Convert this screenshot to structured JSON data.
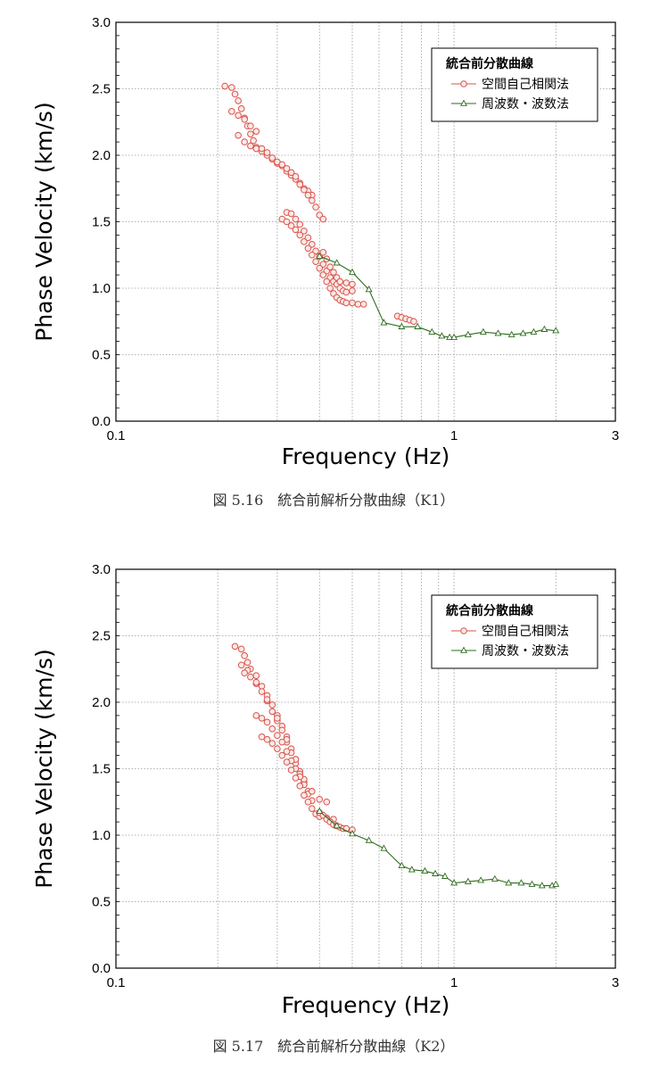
{
  "chart_data": [
    {
      "type": "scatter",
      "caption": "図 5.16　統合前解析分散曲線（K1）",
      "xlabel": "Frequency (Hz)",
      "ylabel": "Phase Velocity (km/s)",
      "xscale": "log",
      "xlim": [
        0.1,
        3
      ],
      "ylim": [
        0.0,
        3.0
      ],
      "xticks": [
        "0.1",
        "1",
        "3"
      ],
      "yticks": [
        "0.0",
        "0.5",
        "1.0",
        "1.5",
        "2.0",
        "2.5",
        "3.0"
      ],
      "grid": true,
      "legend": {
        "title": "統合前分散曲線",
        "position": "top-right"
      },
      "series": [
        {
          "name": "空間自己相関法",
          "marker": "circle",
          "color": "#d9534f",
          "points": [
            [
              0.21,
              2.52
            ],
            [
              0.22,
              2.51
            ],
            [
              0.225,
              2.46
            ],
            [
              0.23,
              2.41
            ],
            [
              0.235,
              2.35
            ],
            [
              0.24,
              2.28
            ],
            [
              0.245,
              2.22
            ],
            [
              0.25,
              2.16
            ],
            [
              0.255,
              2.11
            ],
            [
              0.26,
              2.06
            ],
            [
              0.27,
              2.03
            ],
            [
              0.28,
              2.0
            ],
            [
              0.29,
              1.97
            ],
            [
              0.3,
              1.94
            ],
            [
              0.31,
              1.92
            ],
            [
              0.32,
              1.88
            ],
            [
              0.33,
              1.85
            ],
            [
              0.34,
              1.82
            ],
            [
              0.35,
              1.79
            ],
            [
              0.36,
              1.75
            ],
            [
              0.37,
              1.73
            ],
            [
              0.38,
              1.7
            ],
            [
              0.22,
              2.33
            ],
            [
              0.23,
              2.3
            ],
            [
              0.24,
              2.27
            ],
            [
              0.25,
              2.22
            ],
            [
              0.26,
              2.18
            ],
            [
              0.23,
              2.15
            ],
            [
              0.24,
              2.1
            ],
            [
              0.25,
              2.07
            ],
            [
              0.26,
              2.05
            ],
            [
              0.27,
              2.05
            ],
            [
              0.28,
              2.02
            ],
            [
              0.29,
              1.98
            ],
            [
              0.3,
              1.95
            ],
            [
              0.31,
              1.93
            ],
            [
              0.32,
              1.9
            ],
            [
              0.33,
              1.87
            ],
            [
              0.34,
              1.84
            ],
            [
              0.35,
              1.78
            ],
            [
              0.36,
              1.74
            ],
            [
              0.37,
              1.7
            ],
            [
              0.38,
              1.66
            ],
            [
              0.39,
              1.61
            ],
            [
              0.4,
              1.55
            ],
            [
              0.41,
              1.52
            ],
            [
              0.32,
              1.57
            ],
            [
              0.33,
              1.56
            ],
            [
              0.34,
              1.52
            ],
            [
              0.35,
              1.48
            ],
            [
              0.36,
              1.43
            ],
            [
              0.37,
              1.38
            ],
            [
              0.38,
              1.33
            ],
            [
              0.39,
              1.28
            ],
            [
              0.4,
              1.24
            ],
            [
              0.41,
              1.18
            ],
            [
              0.42,
              1.13
            ],
            [
              0.43,
              1.08
            ],
            [
              0.44,
              1.05
            ],
            [
              0.45,
              1.03
            ],
            [
              0.46,
              1.0
            ],
            [
              0.47,
              0.98
            ],
            [
              0.48,
              0.97
            ],
            [
              0.5,
              0.98
            ],
            [
              0.31,
              1.52
            ],
            [
              0.32,
              1.5
            ],
            [
              0.33,
              1.47
            ],
            [
              0.34,
              1.44
            ],
            [
              0.35,
              1.4
            ],
            [
              0.36,
              1.35
            ],
            [
              0.37,
              1.3
            ],
            [
              0.38,
              1.25
            ],
            [
              0.39,
              1.2
            ],
            [
              0.4,
              1.15
            ],
            [
              0.41,
              1.1
            ],
            [
              0.42,
              1.05
            ],
            [
              0.43,
              1.0
            ],
            [
              0.44,
              0.96
            ],
            [
              0.45,
              0.93
            ],
            [
              0.46,
              0.91
            ],
            [
              0.47,
              0.9
            ],
            [
              0.48,
              0.89
            ],
            [
              0.5,
              0.89
            ],
            [
              0.52,
              0.88
            ],
            [
              0.54,
              0.88
            ],
            [
              0.41,
              1.27
            ],
            [
              0.42,
              1.22
            ],
            [
              0.43,
              1.16
            ],
            [
              0.44,
              1.12
            ],
            [
              0.45,
              1.08
            ],
            [
              0.46,
              1.05
            ],
            [
              0.48,
              1.04
            ],
            [
              0.5,
              1.03
            ],
            [
              0.68,
              0.79
            ],
            [
              0.7,
              0.78
            ],
            [
              0.72,
              0.77
            ],
            [
              0.74,
              0.76
            ],
            [
              0.76,
              0.75
            ]
          ]
        },
        {
          "name": "周波数・波数法",
          "marker": "triangle",
          "color": "#2e6b1e",
          "points": [
            [
              0.4,
              1.24
            ],
            [
              0.45,
              1.19
            ],
            [
              0.5,
              1.12
            ],
            [
              0.56,
              0.99
            ],
            [
              0.62,
              0.74
            ],
            [
              0.7,
              0.71
            ],
            [
              0.78,
              0.71
            ],
            [
              0.86,
              0.67
            ],
            [
              0.92,
              0.64
            ],
            [
              0.97,
              0.63
            ],
            [
              1.0,
              0.63
            ],
            [
              1.1,
              0.65
            ],
            [
              1.22,
              0.67
            ],
            [
              1.35,
              0.66
            ],
            [
              1.48,
              0.65
            ],
            [
              1.6,
              0.66
            ],
            [
              1.72,
              0.67
            ],
            [
              1.85,
              0.69
            ],
            [
              2.0,
              0.68
            ]
          ]
        }
      ]
    },
    {
      "type": "scatter",
      "caption": "図 5.17　統合前解析分散曲線（K2）",
      "xlabel": "Frequency (Hz)",
      "ylabel": "Phase Velocity (km/s)",
      "xscale": "log",
      "xlim": [
        0.1,
        3
      ],
      "ylim": [
        0.0,
        3.0
      ],
      "xticks": [
        "0.1",
        "1",
        "3"
      ],
      "yticks": [
        "0.0",
        "0.5",
        "1.0",
        "1.5",
        "2.0",
        "2.5",
        "3.0"
      ],
      "grid": true,
      "legend": {
        "title": "統合前分散曲線",
        "position": "top-right"
      },
      "series": [
        {
          "name": "空間自己相関法",
          "marker": "circle",
          "color": "#d9534f",
          "points": [
            [
              0.225,
              2.42
            ],
            [
              0.235,
              2.4
            ],
            [
              0.24,
              2.35
            ],
            [
              0.245,
              2.3
            ],
            [
              0.25,
              2.25
            ],
            [
              0.26,
              2.2
            ],
            [
              0.27,
              2.12
            ],
            [
              0.28,
              2.05
            ],
            [
              0.29,
              1.98
            ],
            [
              0.3,
              1.9
            ],
            [
              0.31,
              1.82
            ],
            [
              0.32,
              1.74
            ],
            [
              0.33,
              1.65
            ],
            [
              0.34,
              1.57
            ],
            [
              0.35,
              1.48
            ],
            [
              0.36,
              1.4
            ],
            [
              0.37,
              1.33
            ],
            [
              0.235,
              2.28
            ],
            [
              0.245,
              2.24
            ],
            [
              0.25,
              2.19
            ],
            [
              0.26,
              2.14
            ],
            [
              0.27,
              2.08
            ],
            [
              0.28,
              2.01
            ],
            [
              0.29,
              1.93
            ],
            [
              0.3,
              1.86
            ],
            [
              0.31,
              1.79
            ],
            [
              0.32,
              1.7
            ],
            [
              0.33,
              1.62
            ],
            [
              0.34,
              1.54
            ],
            [
              0.35,
              1.46
            ],
            [
              0.36,
              1.38
            ],
            [
              0.37,
              1.31
            ],
            [
              0.38,
              1.26
            ],
            [
              0.24,
              2.22
            ],
            [
              0.26,
              2.15
            ],
            [
              0.28,
              2.02
            ],
            [
              0.3,
              1.88
            ],
            [
              0.32,
              1.72
            ],
            [
              0.34,
              1.57
            ],
            [
              0.36,
              1.42
            ],
            [
              0.38,
              1.33
            ],
            [
              0.4,
              1.27
            ],
            [
              0.42,
              1.25
            ],
            [
              0.26,
              1.9
            ],
            [
              0.27,
              1.88
            ],
            [
              0.28,
              1.85
            ],
            [
              0.29,
              1.8
            ],
            [
              0.3,
              1.75
            ],
            [
              0.31,
              1.7
            ],
            [
              0.32,
              1.63
            ],
            [
              0.33,
              1.56
            ],
            [
              0.34,
              1.5
            ],
            [
              0.35,
              1.44
            ],
            [
              0.36,
              1.38
            ],
            [
              0.27,
              1.74
            ],
            [
              0.28,
              1.72
            ],
            [
              0.29,
              1.69
            ],
            [
              0.3,
              1.65
            ],
            [
              0.31,
              1.6
            ],
            [
              0.32,
              1.55
            ],
            [
              0.33,
              1.49
            ],
            [
              0.34,
              1.43
            ],
            [
              0.35,
              1.37
            ],
            [
              0.36,
              1.3
            ],
            [
              0.37,
              1.25
            ],
            [
              0.38,
              1.2
            ],
            [
              0.39,
              1.16
            ],
            [
              0.4,
              1.14
            ],
            [
              0.42,
              1.13
            ],
            [
              0.44,
              1.12
            ],
            [
              0.4,
              1.17
            ],
            [
              0.41,
              1.15
            ],
            [
              0.42,
              1.12
            ],
            [
              0.43,
              1.1
            ],
            [
              0.44,
              1.08
            ],
            [
              0.45,
              1.07
            ],
            [
              0.46,
              1.06
            ],
            [
              0.47,
              1.05
            ],
            [
              0.48,
              1.05
            ],
            [
              0.5,
              1.04
            ]
          ]
        },
        {
          "name": "周波数・波数法",
          "marker": "triangle",
          "color": "#2e6b1e",
          "points": [
            [
              0.4,
              1.18
            ],
            [
              0.45,
              1.07
            ],
            [
              0.5,
              1.01
            ],
            [
              0.56,
              0.96
            ],
            [
              0.62,
              0.9
            ],
            [
              0.7,
              0.77
            ],
            [
              0.75,
              0.74
            ],
            [
              0.82,
              0.73
            ],
            [
              0.88,
              0.71
            ],
            [
              0.94,
              0.69
            ],
            [
              1.0,
              0.64
            ],
            [
              1.1,
              0.65
            ],
            [
              1.2,
              0.66
            ],
            [
              1.32,
              0.67
            ],
            [
              1.45,
              0.64
            ],
            [
              1.58,
              0.64
            ],
            [
              1.7,
              0.63
            ],
            [
              1.82,
              0.62
            ],
            [
              1.95,
              0.62
            ],
            [
              2.0,
              0.63
            ]
          ]
        }
      ]
    }
  ]
}
